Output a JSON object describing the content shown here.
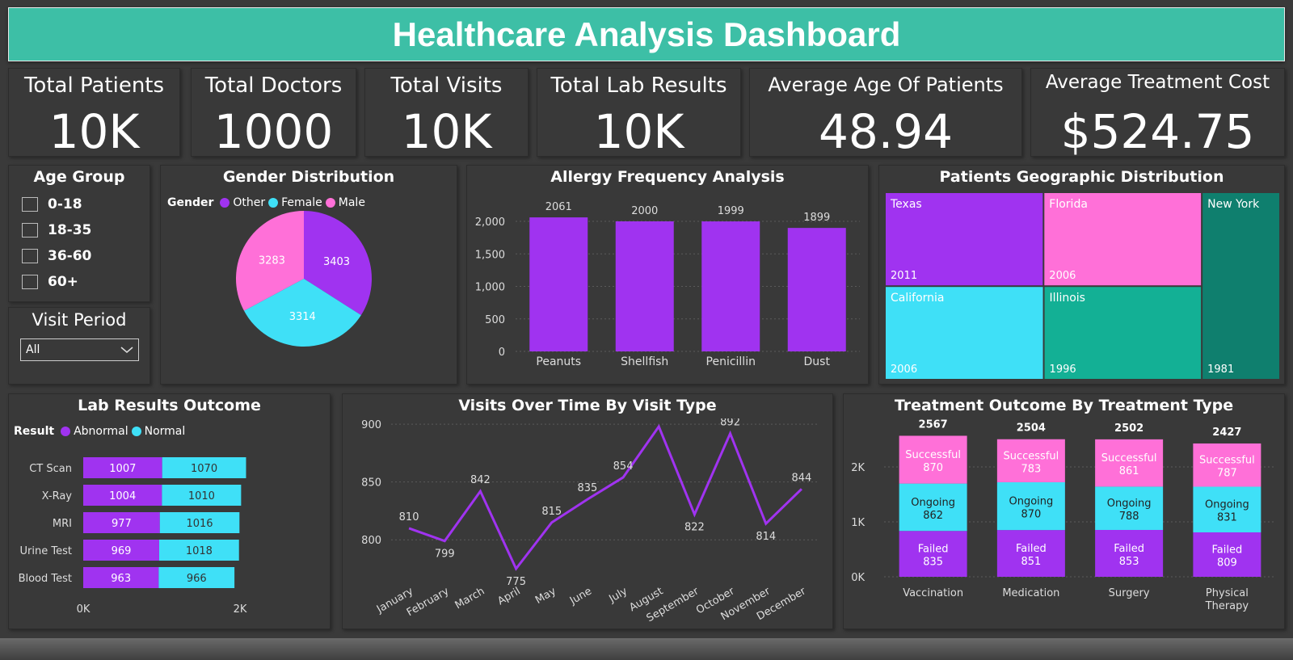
{
  "title": "Healthcare Analysis Dashboard",
  "kpis": {
    "patients": {
      "label": "Total Patients",
      "value": "10K"
    },
    "doctors": {
      "label": "Total Doctors",
      "value": "1000"
    },
    "visits": {
      "label": "Total Visits",
      "value": "10K"
    },
    "lab": {
      "label": "Total Lab Results",
      "value": "10K"
    },
    "age": {
      "label": "Average Age Of Patients",
      "value": "48.94"
    },
    "cost": {
      "label": "Average Treatment Cost",
      "value": "$524.75"
    }
  },
  "age_group": {
    "title": "Age Group",
    "options": [
      "0-18",
      "18-35",
      "36-60",
      "60+"
    ]
  },
  "visit_period": {
    "title": "Visit Period",
    "selected": "All"
  },
  "colors": {
    "purple": "#a033f0",
    "cyan": "#3fe0f7",
    "pink": "#ff70d8",
    "teal": "#13b095",
    "dark_teal": "#0f7f6e"
  },
  "chart_data": [
    {
      "id": "gender",
      "type": "pie",
      "title": "Gender Distribution",
      "legend_title": "Gender",
      "legend": [
        "Other",
        "Female",
        "Male"
      ],
      "slices": [
        {
          "name": "Other",
          "value": 3403,
          "color": "#a033f0"
        },
        {
          "name": "Female",
          "value": 3314,
          "color": "#3fe0f7"
        },
        {
          "name": "Male",
          "value": 3283,
          "color": "#ff70d8"
        }
      ]
    },
    {
      "id": "allergy",
      "type": "bar",
      "title": "Allergy Frequency Analysis",
      "categories": [
        "Peanuts",
        "Shellfish",
        "Penicillin",
        "Dust"
      ],
      "values": [
        2061,
        2000,
        1999,
        1899
      ],
      "yticks": [
        "0",
        "500",
        "1,000",
        "1,500",
        "2,000"
      ],
      "ylim": [
        0,
        2000
      ],
      "color": "#a033f0",
      "grid": true
    },
    {
      "id": "geo",
      "type": "treemap",
      "title": "Patients Geographic Distribution",
      "items": [
        {
          "name": "Texas",
          "value": 2011,
          "color": "#a033f0"
        },
        {
          "name": "Florida",
          "value": 2006,
          "color": "#ff70d8"
        },
        {
          "name": "New York",
          "value": 1981,
          "color": "#0f7f6e"
        },
        {
          "name": "California",
          "value": 2006,
          "color": "#3fe0f7"
        },
        {
          "name": "Illinois",
          "value": 1996,
          "color": "#13b095"
        }
      ]
    },
    {
      "id": "lab",
      "type": "bar",
      "orientation": "horizontal",
      "stacked": true,
      "title": "Lab Results Outcome",
      "legend_title": "Result",
      "categories": [
        "CT Scan",
        "X-Ray",
        "MRI",
        "Urine Test",
        "Blood Test"
      ],
      "series": [
        {
          "name": "Abnormal",
          "values": [
            1007,
            1004,
            977,
            969,
            963
          ],
          "color": "#a033f0"
        },
        {
          "name": "Normal",
          "values": [
            1070,
            1010,
            1016,
            1018,
            966
          ],
          "color": "#3fe0f7"
        }
      ],
      "xticks": [
        "0K",
        "2K"
      ],
      "xlim": [
        0,
        2000
      ]
    },
    {
      "id": "visits",
      "type": "line",
      "title": "Visits Over Time By Visit Type",
      "x": [
        "January",
        "February",
        "March",
        "April",
        "May",
        "June",
        "July",
        "August",
        "September",
        "October",
        "November",
        "December"
      ],
      "values": [
        810,
        799,
        842,
        775,
        815,
        835,
        854,
        898,
        822,
        892,
        814,
        844
      ],
      "yticks": [
        "800",
        "850",
        "900"
      ],
      "ylim": [
        768,
        905
      ],
      "color": "#a033f0",
      "grid": true
    },
    {
      "id": "treatment",
      "type": "bar",
      "stacked": true,
      "title": "Treatment Outcome By Treatment Type",
      "categories": [
        "Vaccination",
        "Medication",
        "Surgery",
        "Physical Therapy"
      ],
      "totals": [
        2567,
        2504,
        2502,
        2427
      ],
      "series": [
        {
          "name": "Failed",
          "values": [
            835,
            851,
            853,
            809
          ],
          "color": "#a033f0"
        },
        {
          "name": "Ongoing",
          "values": [
            862,
            870,
            788,
            831
          ],
          "color": "#3fe0f7"
        },
        {
          "name": "Successful",
          "values": [
            870,
            783,
            861,
            787
          ],
          "color": "#ff70d8"
        }
      ],
      "yticks": [
        "0K",
        "1K",
        "2K"
      ],
      "ylim": [
        0,
        2600
      ],
      "grid": true
    }
  ]
}
